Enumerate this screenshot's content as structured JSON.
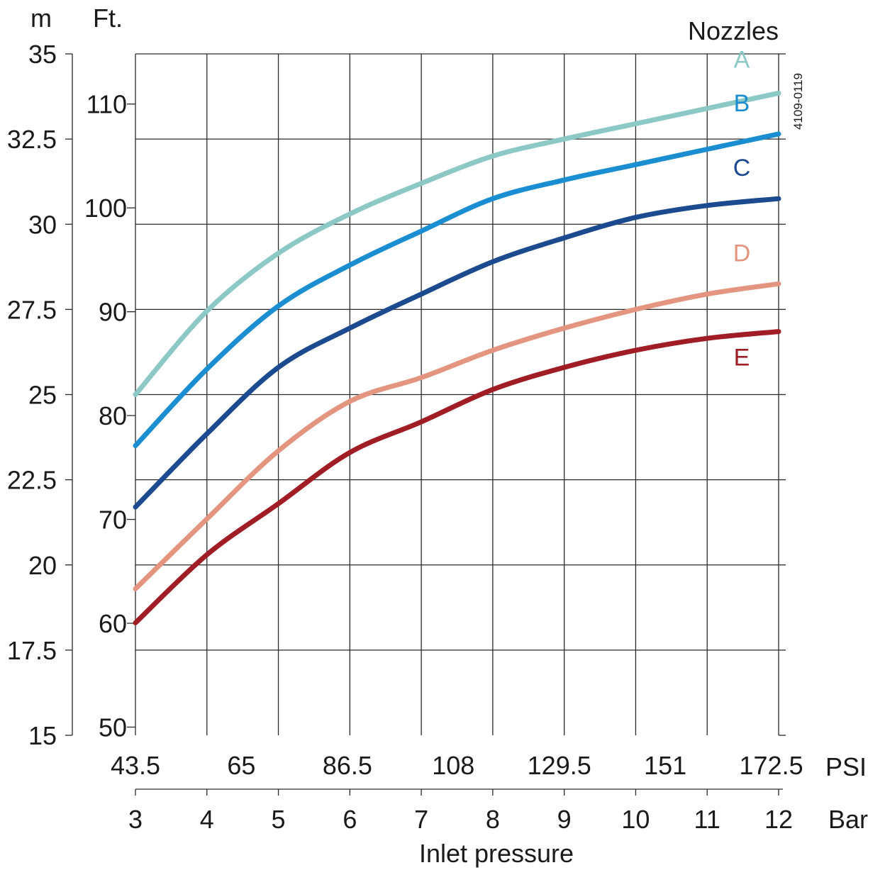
{
  "chart_data": {
    "type": "line",
    "xlabel": "Inlet pressure",
    "x_axis_bar": {
      "unit": "Bar",
      "ticks": [
        "3",
        "4",
        "5",
        "6",
        "7",
        "8",
        "9",
        "10",
        "11",
        "12"
      ],
      "range": [
        3,
        12
      ]
    },
    "x_axis_psi": {
      "unit": "PSI",
      "ticks": [
        "43.5",
        "65",
        "86.5",
        "108",
        "129.5",
        "151",
        "172.5"
      ]
    },
    "y_axis_m": {
      "unit": "m",
      "ticks": [
        "15",
        "17.5",
        "20",
        "22.5",
        "25",
        "27.5",
        "30",
        "32.5",
        "35"
      ],
      "range": [
        15,
        35
      ]
    },
    "y_axis_ft": {
      "unit": "Ft.",
      "ticks": [
        "50",
        "60",
        "70",
        "80",
        "90",
        "100",
        "110"
      ]
    },
    "legend_title": "Nozzles",
    "code": "4109-0119",
    "grid": true,
    "series": [
      {
        "name": "A",
        "color": "#8cc8c6",
        "x": [
          3,
          4,
          5,
          6,
          7,
          8,
          9,
          10,
          11,
          12
        ],
        "y": [
          25.0,
          27.45,
          29.15,
          30.3,
          31.2,
          32.0,
          32.5,
          32.95,
          33.4,
          33.85
        ]
      },
      {
        "name": "B",
        "color": "#1a8ed1",
        "x": [
          3,
          4,
          5,
          6,
          7,
          8,
          9,
          10,
          11,
          12
        ],
        "y": [
          23.5,
          25.75,
          27.6,
          28.8,
          29.8,
          30.75,
          31.3,
          31.75,
          32.2,
          32.65
        ]
      },
      {
        "name": "C",
        "color": "#1b4a8f",
        "x": [
          3,
          4,
          5,
          6,
          7,
          8,
          9,
          10,
          11,
          12
        ],
        "y": [
          21.7,
          23.85,
          25.8,
          26.95,
          27.95,
          28.9,
          29.6,
          30.2,
          30.55,
          30.75
        ]
      },
      {
        "name": "D",
        "color": "#e39580",
        "x": [
          3,
          4,
          5,
          6,
          7,
          8,
          9,
          10,
          11,
          12
        ],
        "y": [
          19.3,
          21.35,
          23.35,
          24.8,
          25.5,
          26.3,
          26.95,
          27.5,
          27.95,
          28.25
        ]
      },
      {
        "name": "E",
        "color": "#a11d26",
        "x": [
          3,
          4,
          5,
          6,
          7,
          8,
          9,
          10,
          11,
          12
        ],
        "y": [
          18.3,
          20.3,
          21.8,
          23.3,
          24.2,
          25.15,
          25.8,
          26.3,
          26.65,
          26.85
        ]
      }
    ]
  }
}
